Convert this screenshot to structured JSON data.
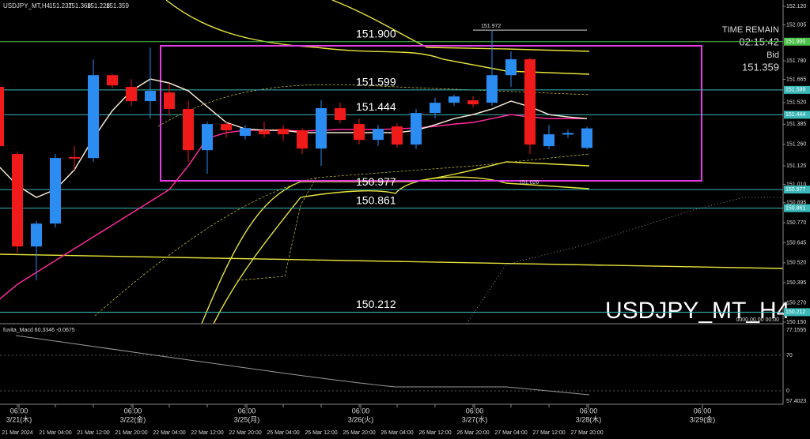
{
  "chart_data": {
    "type": "candlestick",
    "symbol": "USDJPY_MT,H4",
    "watermark": "USDJPY_MT_H4",
    "timer": {
      "title": "TIME REMAIN",
      "time": "02:15:42",
      "price_label": "Bid"
    },
    "empty_time": "0000.00.00 00:00",
    "categories": [
      null,
      "21 Mar 2024",
      null,
      "21 Mar 04:00",
      null,
      "21 Mar 12:00",
      null,
      "21 Mar 20:00",
      null,
      "22 Mar 04:00",
      null,
      "22 Mar 12:00",
      null,
      "22 Mar 20:00",
      null,
      "25 Mar 04:00",
      null,
      "25 Mar 12:00",
      null,
      "25 Mar 20:00",
      null,
      "26 Mar 04:00",
      null,
      "26 Mar 12:00",
      null,
      "26 Mar 20:00",
      null,
      "27 Mar 04:00",
      null,
      "27 Mar 12:00",
      null,
      "27 Mar 20:00"
    ],
    "day_labels": [
      {
        "time": "06:00",
        "date": "3/21(木)"
      },
      {
        "time": "06:00",
        "date": "3/22(金)"
      },
      {
        "time": "06:00",
        "date": "3/25(月)"
      },
      {
        "time": "06:00",
        "date": "3/26(火)"
      },
      {
        "time": "06:00",
        "date": "3/27(水)"
      },
      {
        "time": "06:00",
        "date": "3/28(木)"
      },
      {
        "time": "06:00",
        "date": "3/29(金)"
      }
    ],
    "open": [
      151.618,
      151.199,
      150.622,
      150.765,
      151.18,
      151.174,
      151.691,
      151.618,
      151.529,
      151.583,
      151.48,
      151.223,
      151.386,
      151.312,
      151.347,
      151.356,
      151.347,
      151.233,
      151.485,
      151.386,
      151.287,
      151.371,
      151.258,
      151.455,
      151.519,
      151.534,
      151.519,
      151.691,
      151.79,
      151.248,
      151.32,
      151.237
    ],
    "high": [
      151.642,
      151.214,
      150.78,
      151.199,
      151.25,
      151.79,
      151.7,
      151.667,
      151.864,
      151.64,
      151.53,
      151.4,
      151.4,
      151.38,
      151.4,
      151.38,
      151.36,
      151.534,
      151.52,
      151.42,
      151.38,
      151.39,
      151.48,
      151.55,
      151.57,
      151.56,
      151.972,
      151.839,
      151.8,
      151.38,
      151.35,
      151.368
    ],
    "low": [
      151.223,
      150.583,
      150.411,
      150.74,
      151.1,
      151.15,
      151.61,
      151.5,
      151.42,
      151.44,
      151.15,
      151.076,
      151.3,
      151.29,
      151.3,
      151.28,
      151.2,
      151.125,
      151.39,
      151.26,
      151.25,
      151.24,
      151.23,
      151.42,
      151.5,
      151.49,
      151.5,
      151.618,
      151.199,
      151.23,
      151.3,
      151.228
    ],
    "close": [
      151.248,
      150.622,
      150.765,
      151.174,
      151.17,
      151.691,
      151.627,
      151.529,
      151.593,
      151.48,
      151.223,
      151.386,
      151.347,
      151.361,
      151.322,
      151.322,
      151.233,
      151.485,
      151.411,
      151.287,
      151.356,
      151.258,
      151.455,
      151.519,
      151.558,
      151.509,
      151.691,
      151.79,
      151.258,
      151.322,
      151.33,
      151.359
    ],
    "up_color": "#2b8cf2",
    "down_color": "#f01a1a",
    "lines": [
      {
        "color": "#ff2a9a",
        "values": [
          150.287,
          150.386,
          150.46,
          150.534,
          150.608,
          150.682,
          150.755,
          150.829,
          150.903,
          150.977,
          151.125,
          151.297,
          151.332,
          151.347,
          151.347,
          151.347,
          151.342,
          151.347,
          151.352,
          151.352,
          151.352,
          151.356,
          151.361,
          151.371,
          151.386,
          151.396,
          151.42,
          151.445,
          151.43,
          151.42,
          151.42,
          151.42
        ]
      },
      {
        "color": "#f2e6d0",
        "values": [
          151.125,
          151.002,
          150.928,
          150.977,
          151.1,
          151.297,
          151.47,
          151.593,
          151.667,
          151.642,
          151.593,
          151.494,
          151.396,
          151.356,
          151.347,
          151.347,
          151.332,
          151.332,
          151.332,
          151.332,
          151.332,
          151.332,
          151.347,
          151.381,
          151.42,
          151.445,
          151.48,
          151.529,
          151.494,
          151.445,
          151.43,
          151.42
        ]
      }
    ],
    "levels": [
      {
        "value": 151.9,
        "label": "151.900",
        "color": "#4cc24c"
      },
      {
        "value": 151.599,
        "label": "151.599",
        "color": "#3cb8b8"
      },
      {
        "value": 151.444,
        "label": "151.444",
        "color": "#3cb8b8"
      },
      {
        "value": 150.977,
        "label": "150.977",
        "color": "#3cb8b8"
      },
      {
        "value": 150.861,
        "label": "150.861",
        "color": "#3cb8b8"
      },
      {
        "value": 150.212,
        "label": "150.212",
        "color": "#3cb8b8"
      }
    ],
    "annotations": [
      {
        "value": 151.972,
        "label": "151.972"
      },
      {
        "value": 151.026,
        "label": "151.026"
      }
    ],
    "ylim": [
      150.14,
      152.16
    ],
    "yticks": [
      {
        "value": 152.12,
        "label": "152.120"
      },
      {
        "value": 152.005,
        "label": "152.005"
      },
      {
        "value": 151.78,
        "label": "151.780"
      },
      {
        "value": 151.665,
        "label": "151.665"
      },
      {
        "value": 151.52,
        "label": "151.520"
      },
      {
        "value": 151.385,
        "label": "151.385"
      },
      {
        "value": 151.26,
        "label": "151.260"
      },
      {
        "value": 151.125,
        "label": "151.125"
      },
      {
        "value": 151.01,
        "label": "151.010"
      },
      {
        "value": 150.895,
        "label": "150.895"
      },
      {
        "value": 150.77,
        "label": "150.770"
      },
      {
        "value": 150.645,
        "label": "150.645"
      },
      {
        "value": 150.52,
        "label": "150.520"
      },
      {
        "value": 150.395,
        "label": "150.395"
      },
      {
        "value": 150.27,
        "label": "150.270"
      },
      {
        "value": 150.15,
        "label": "150.150"
      }
    ],
    "macd": {
      "title": "fuvita_Macd 60.3346 -0.0675",
      "labels": [
        "77.1555",
        "70",
        "0",
        "57.4023"
      ]
    }
  }
}
